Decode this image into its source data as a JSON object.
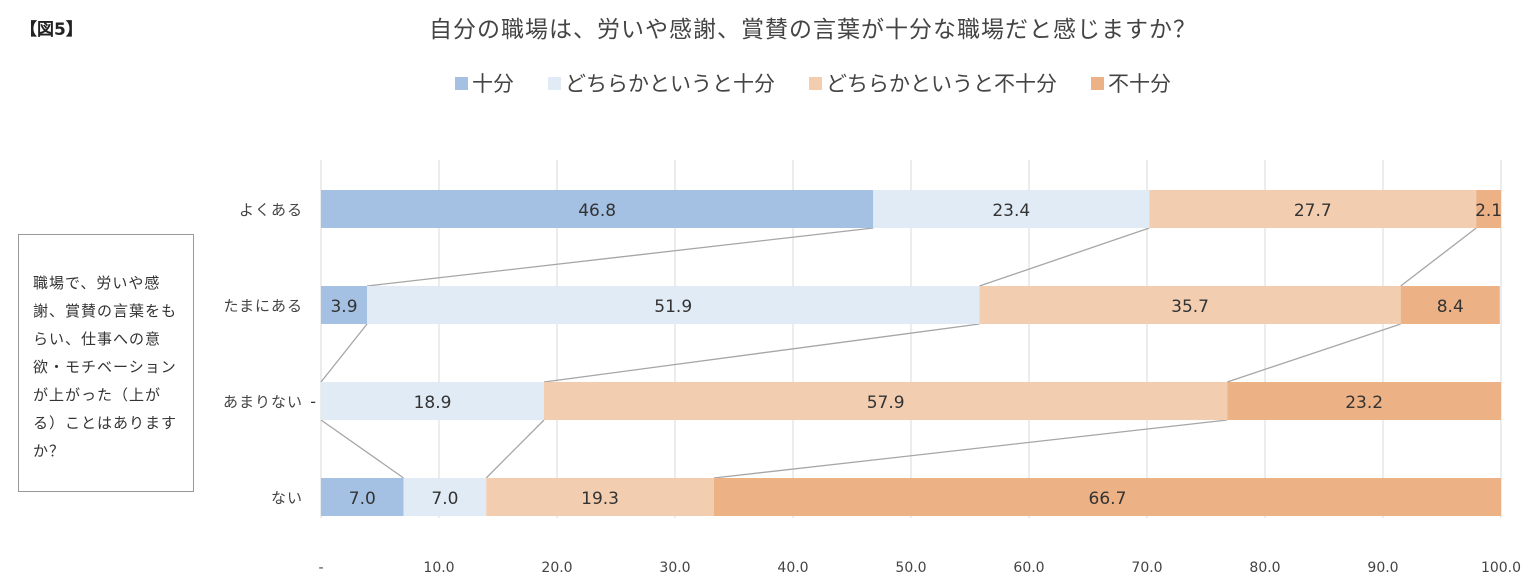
{
  "figure_label": "【図5】",
  "question_box": "職場で、労いや感謝、賞賛の言葉をもらい、仕事への意欲・モチベーションが上がった（上がる）ことはありますか？",
  "chart_data": {
    "type": "bar",
    "orientation": "horizontal",
    "stacked": true,
    "title": "自分の職場は、労いや感謝、賞賛の言葉が十分な職場だと感じますか？",
    "legend_position": "top",
    "categories": [
      "よくある",
      "たまにある",
      "あまりない",
      "ない"
    ],
    "series": [
      {
        "name": "十分",
        "color": "#a4c1e3",
        "values": [
          46.8,
          3.9,
          0,
          7.0
        ],
        "labels": [
          "46.8",
          "3.9",
          "-",
          "7.0"
        ]
      },
      {
        "name": "どちらかというと十分",
        "color": "#e1ebf6",
        "values": [
          23.4,
          51.9,
          18.9,
          7.0
        ],
        "labels": [
          "23.4",
          "51.9",
          "18.9",
          "7.0"
        ]
      },
      {
        "name": "どちらかというと不十分",
        "color": "#f2cdb0",
        "values": [
          27.7,
          35.7,
          57.9,
          19.3
        ],
        "labels": [
          "27.7",
          "35.7",
          "57.9",
          "19.3"
        ]
      },
      {
        "name": "不十分",
        "color": "#ecb185",
        "values": [
          2.1,
          8.4,
          23.2,
          66.7
        ],
        "labels": [
          "2.1",
          "8.4",
          "23.2",
          "66.7"
        ]
      }
    ],
    "xlim": [
      0,
      100
    ],
    "x_ticks": [
      0,
      10,
      20,
      30,
      40,
      50,
      60,
      70,
      80,
      90,
      100
    ],
    "x_tick_labels": [
      "-",
      "10.0",
      "20.0",
      "30.0",
      "40.0",
      "50.0",
      "60.0",
      "70.0",
      "80.0",
      "90.0",
      "100.0"
    ],
    "grid": true,
    "series_lines": true
  }
}
